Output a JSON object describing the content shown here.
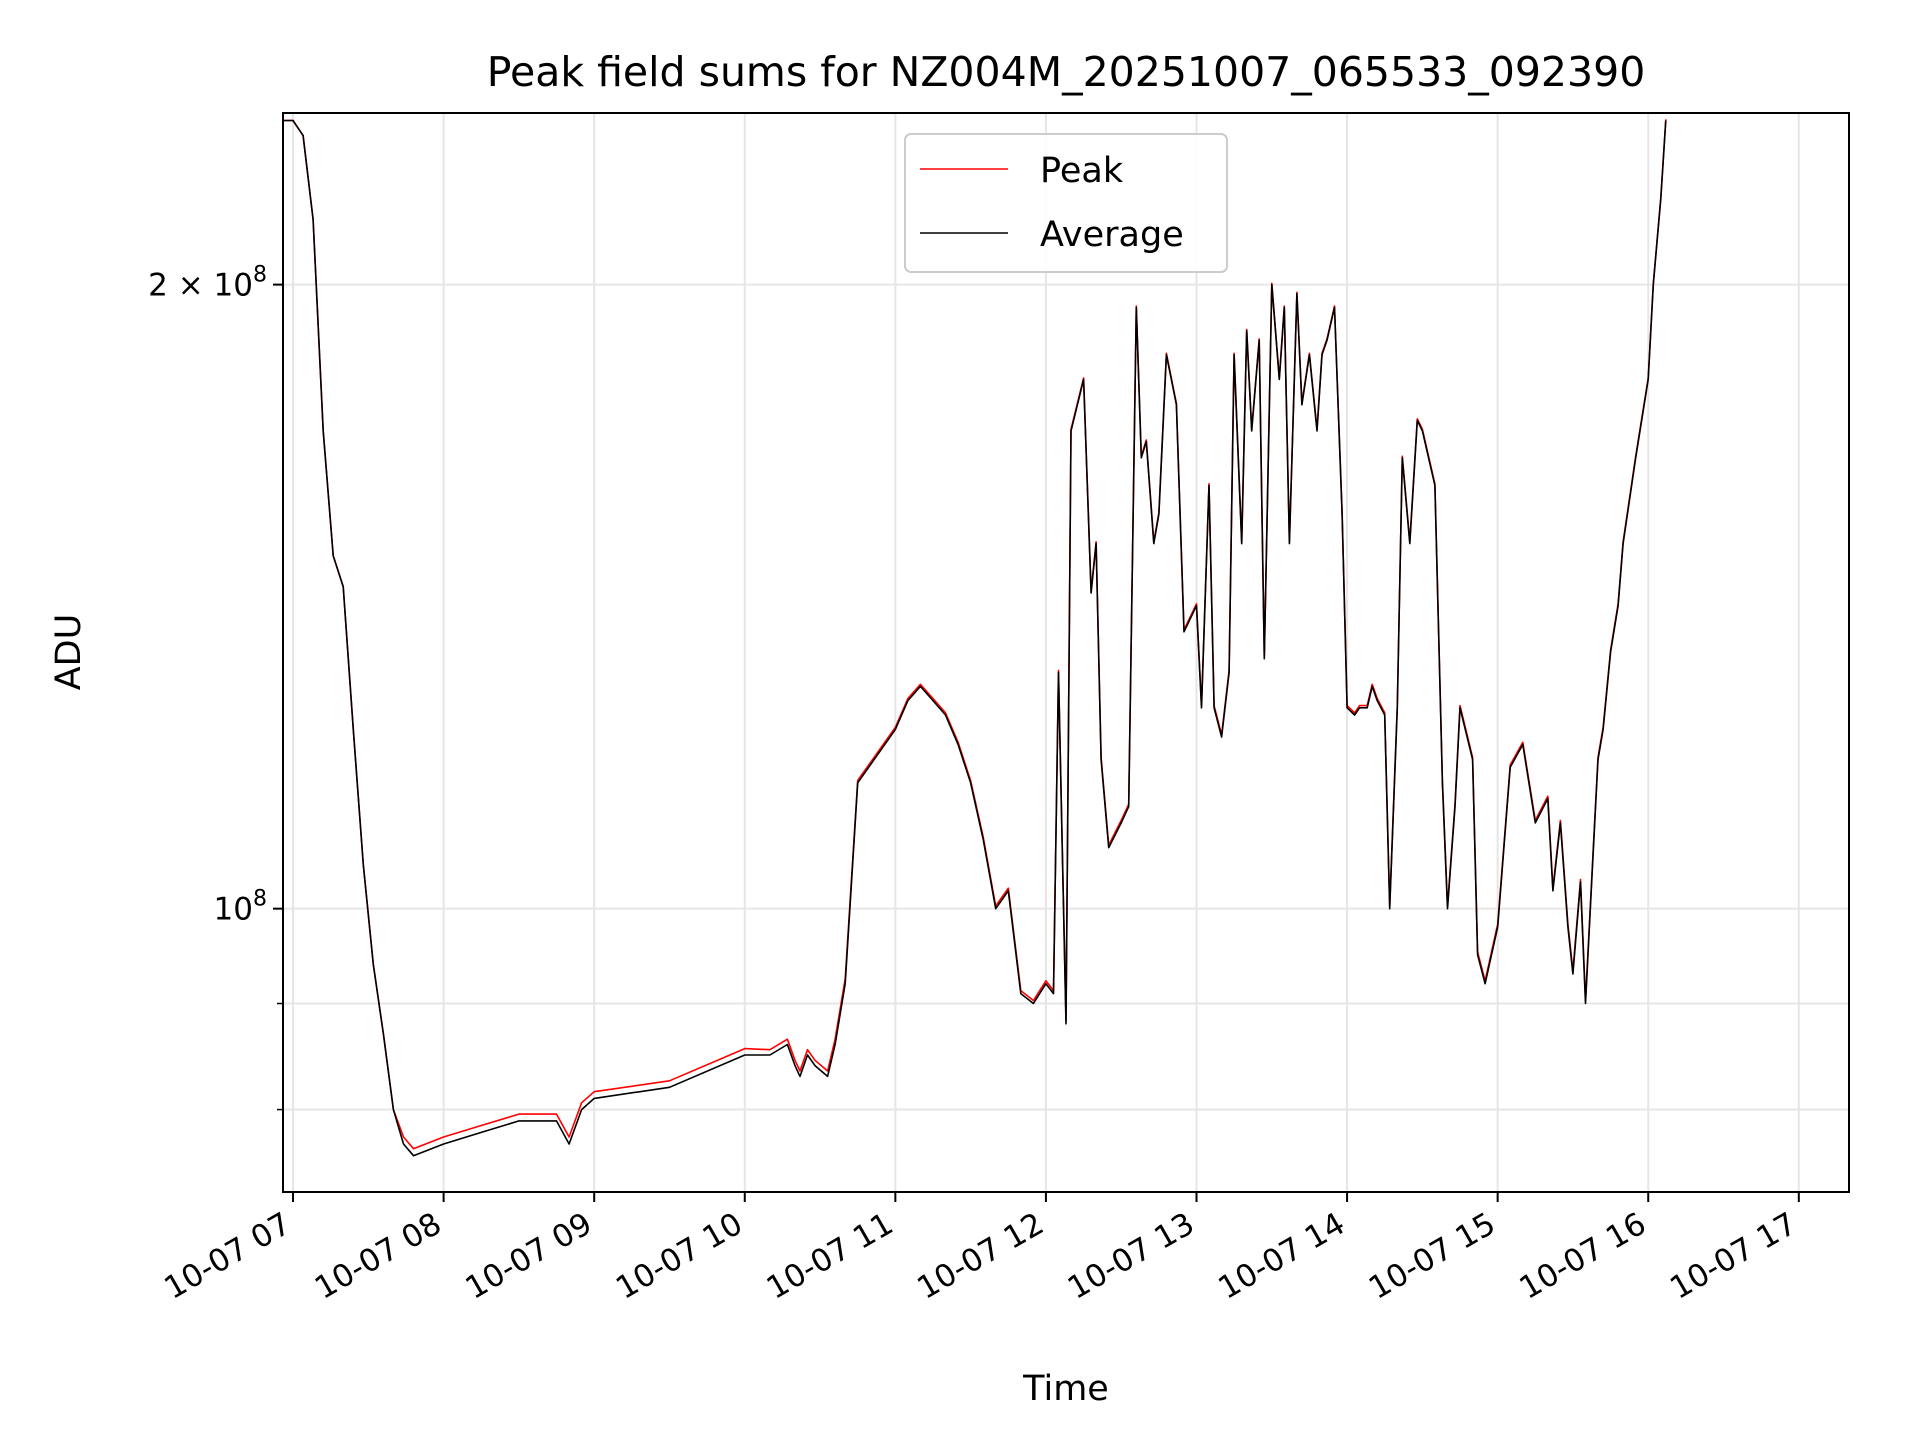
{
  "chart_data": {
    "type": "line",
    "title": "Peak field sums for NZ004M_20251007_065533_092390",
    "xlabel": "Time",
    "ylabel": "ADU",
    "y_scale": "log",
    "ylim": [
      73000000,
      242000000
    ],
    "xlim": [
      "2025-10-07 06:56",
      "2025-10-07 17:20"
    ],
    "grid": true,
    "legend_placement": "upper center",
    "x_ticks": [
      "10-07 07",
      "10-07 08",
      "10-07 09",
      "10-07 10",
      "10-07 11",
      "10-07 12",
      "10-07 13",
      "10-07 14",
      "10-07 15",
      "10-07 16",
      "10-07 17"
    ],
    "y_ticks_major": [
      {
        "value": 100000000,
        "mantissa": "",
        "base": "10",
        "exp": "8"
      },
      {
        "value": 200000000,
        "mantissa": "2 × ",
        "base": "10",
        "exp": "8"
      }
    ],
    "y_ticks_minor": [
      80000000,
      90000000
    ],
    "x_time": [
      "06:56",
      "07:00",
      "07:04",
      "07:08",
      "07:12",
      "07:16",
      "07:20",
      "07:24",
      "07:28",
      "07:32",
      "07:36",
      "07:40",
      "07:44",
      "07:48",
      "08:00",
      "08:15",
      "08:30",
      "08:45",
      "08:50",
      "08:55",
      "09:00",
      "09:30",
      "10:00",
      "10:10",
      "10:17",
      "10:20",
      "10:22",
      "10:25",
      "10:28",
      "10:33",
      "10:36",
      "10:40",
      "10:45",
      "11:00",
      "11:05",
      "11:10",
      "11:15",
      "11:20",
      "11:25",
      "11:30",
      "11:35",
      "11:40",
      "11:45",
      "11:50",
      "11:55",
      "12:00",
      "12:03",
      "12:05",
      "12:08",
      "12:10",
      "12:15",
      "12:18",
      "12:20",
      "12:22",
      "12:25",
      "12:30",
      "12:33",
      "12:36",
      "12:38",
      "12:40",
      "12:43",
      "12:45",
      "12:48",
      "12:52",
      "12:55",
      "13:00",
      "13:02",
      "13:05",
      "13:07",
      "13:10",
      "13:13",
      "13:15",
      "13:18",
      "13:20",
      "13:22",
      "13:25",
      "13:27",
      "13:30",
      "13:33",
      "13:35",
      "13:37",
      "13:40",
      "13:42",
      "13:45",
      "13:48",
      "13:50",
      "13:52",
      "13:55",
      "13:58",
      "14:00",
      "14:03",
      "14:05",
      "14:08",
      "14:10",
      "14:12",
      "14:15",
      "14:17",
      "14:20",
      "14:22",
      "14:25",
      "14:28",
      "14:30",
      "14:35",
      "14:38",
      "14:40",
      "14:43",
      "14:45",
      "14:50",
      "14:52",
      "14:55",
      "15:00",
      "15:05",
      "15:10",
      "15:15",
      "15:20",
      "15:22",
      "15:25",
      "15:28",
      "15:30",
      "15:33",
      "15:35",
      "15:38",
      "15:40",
      "15:42",
      "15:45",
      "15:48",
      "15:50",
      "15:55",
      "16:00",
      "16:02",
      "16:05",
      "16:07",
      "16:10",
      "16:12",
      "16:15",
      "16:18",
      "16:20",
      "16:22",
      "16:25",
      "16:27",
      "16:30",
      "16:32",
      "16:35",
      "16:38",
      "16:40",
      "16:42",
      "16:45",
      "16:48",
      "16:50",
      "16:53",
      "16:55",
      "17:00",
      "17:05",
      "17:10",
      "17:15",
      "17:18"
    ],
    "series": [
      {
        "name": "Peak",
        "color": "#ff0000",
        "values": [
          240,
          240,
          236,
          215,
          170,
          148,
          143,
          122,
          105,
          94,
          87,
          80,
          77,
          76,
          77,
          78,
          79,
          79,
          77,
          80,
          81,
          82,
          85,
          85,
          86,
          84,
          83,
          85,
          84,
          83,
          86,
          92,
          115,
          122,
          126,
          128,
          126,
          124,
          120,
          115,
          108,
          100,
          102,
          91,
          90,
          92,
          91,
          130,
          88,
          170,
          180,
          142,
          150,
          118,
          107,
          110,
          112,
          195,
          165,
          168,
          150,
          155,
          185,
          175,
          136,
          140,
          125,
          160,
          125,
          121,
          130,
          185,
          150,
          190,
          170,
          188,
          132,
          200,
          180,
          195,
          150,
          198,
          175,
          185,
          170,
          185,
          188,
          195,
          155,
          125,
          124,
          125,
          125,
          128,
          126,
          124,
          100,
          125,
          165,
          150,
          172,
          170,
          160,
          115,
          100,
          112,
          125,
          118,
          95,
          92,
          98,
          117,
          120,
          110,
          113,
          102,
          110,
          98,
          93,
          103,
          90,
          106,
          118,
          122,
          133,
          140,
          150,
          165,
          180,
          200,
          220,
          240
        ],
        "offsets": [
          0,
          0,
          0,
          0,
          0,
          0,
          0,
          0,
          0,
          0,
          0,
          0,
          0.6,
          0.6,
          0.6,
          0.6,
          0.6,
          0.6,
          0.6,
          0.6,
          0.6,
          0.6,
          0.6,
          0.5,
          0.5,
          0.5,
          0.5,
          0.5,
          0.5,
          0.5,
          0.5,
          0.5,
          0.3,
          0.3,
          0.3,
          0.3,
          0.3,
          0.3,
          0.3,
          0.3,
          0.3,
          0.3,
          0.3,
          0.3,
          0.3,
          0.3,
          0.3,
          0.3,
          0.3,
          0.3,
          0.3,
          0.3,
          0.3,
          0.3,
          0.3,
          0.3,
          0.3,
          0.3,
          0.3,
          0.3,
          0.3,
          0.3,
          0.3,
          0.3,
          0.3,
          0.3,
          0.3,
          0.3,
          0.3,
          0.3,
          0.3,
          0.3,
          0.3,
          0.3,
          0.3,
          0.3,
          0.3,
          0.3,
          0.3,
          0.3,
          0.3,
          0.3,
          0.3,
          0.3,
          0.3,
          0.3,
          0.3,
          0.3,
          0.3,
          0.3,
          0.3,
          0.3,
          0.3,
          0.3,
          0.3,
          0.3,
          0.3,
          0.3,
          0.3,
          0.3,
          0.3,
          0.3,
          0.3,
          0.3,
          0.3,
          0.3,
          0.3,
          0.3,
          0.3,
          0.3,
          0.3,
          0.3,
          0.3,
          0.3,
          0.3,
          0.3,
          0.3,
          0.3,
          0.3,
          0.3,
          0.3,
          0.3,
          0.3,
          0.3,
          0.3,
          0.3,
          0.3,
          0.3,
          0.3,
          0.3,
          0.3,
          0.3,
          0.3,
          0.3,
          0.3,
          0.3,
          0.3,
          0.3,
          0.3,
          0.3,
          0.3,
          0.3,
          0.3,
          0.3,
          0.3,
          0.3,
          0.3,
          0.3,
          0.3,
          0.3,
          0.3,
          0.3,
          0.3
        ]
      },
      {
        "name": "Average",
        "color": "#000000",
        "values": [
          240,
          240,
          236,
          215,
          170,
          148,
          143,
          122,
          105,
          94,
          87,
          80,
          77,
          76,
          77,
          78,
          79,
          79,
          77,
          80,
          81,
          82,
          85,
          85,
          86,
          84,
          83,
          85,
          84,
          83,
          86,
          92,
          115,
          122,
          126,
          128,
          126,
          124,
          120,
          115,
          108,
          100,
          102,
          91,
          90,
          92,
          91,
          130,
          88,
          170,
          180,
          142,
          150,
          118,
          107,
          110,
          112,
          195,
          165,
          168,
          150,
          155,
          185,
          175,
          136,
          140,
          125,
          160,
          125,
          121,
          130,
          185,
          150,
          190,
          170,
          188,
          132,
          200,
          180,
          195,
          150,
          198,
          175,
          185,
          170,
          185,
          188,
          195,
          155,
          125,
          124,
          125,
          125,
          128,
          126,
          124,
          100,
          125,
          165,
          150,
          172,
          170,
          160,
          115,
          100,
          112,
          125,
          118,
          95,
          92,
          98,
          117,
          120,
          110,
          113,
          102,
          110,
          98,
          93,
          103,
          90,
          106,
          118,
          122,
          133,
          140,
          150,
          165,
          180,
          200,
          220,
          240
        ]
      }
    ]
  }
}
